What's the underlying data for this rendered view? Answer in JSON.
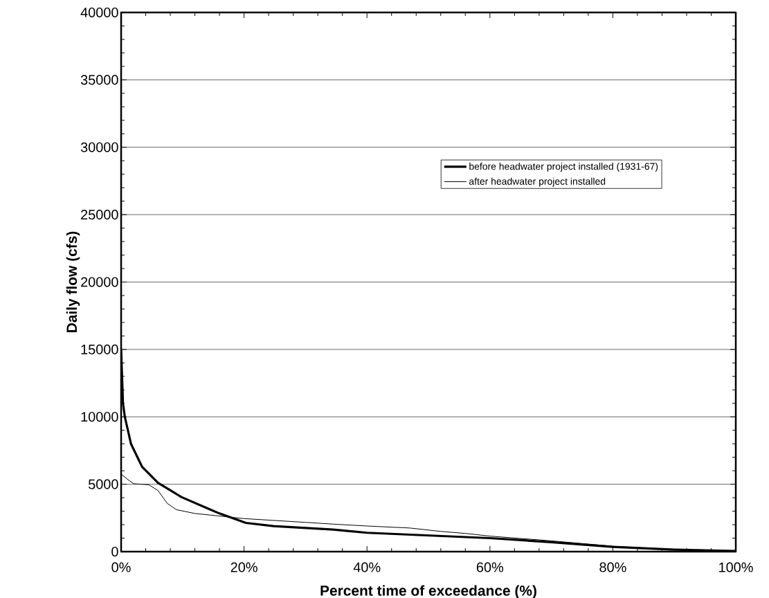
{
  "chart_data": {
    "type": "line",
    "xlabel": "Percent time of exceedance (%)",
    "ylabel": "Daily flow  (cfs)",
    "xlim": [
      0,
      100
    ],
    "ylim": [
      0,
      40000
    ],
    "xticks": [
      {
        "value": 0,
        "label": "0%"
      },
      {
        "value": 20,
        "label": "20%"
      },
      {
        "value": 40,
        "label": "40%"
      },
      {
        "value": 60,
        "label": "60%"
      },
      {
        "value": 80,
        "label": "80%"
      },
      {
        "value": 100,
        "label": "100%"
      }
    ],
    "yticks": [
      0,
      5000,
      10000,
      15000,
      20000,
      25000,
      30000,
      35000,
      40000
    ],
    "grid": "y",
    "legend": "right",
    "marker": "none",
    "line_style": "solid",
    "series": [
      {
        "name": "before headwater project installed (1931-67)",
        "color": "#000000",
        "x": [
          0,
          0.3,
          0.6,
          1.6,
          3.4,
          6,
          9.8,
          13.6,
          16,
          20.3,
          24.8,
          34.5,
          40,
          50,
          60,
          70,
          80,
          90,
          100
        ],
        "values": [
          15000,
          11000,
          10000,
          8000,
          6300,
          5100,
          4050,
          3300,
          2830,
          2130,
          1890,
          1640,
          1400,
          1200,
          1000,
          700,
          350,
          150,
          50
        ]
      },
      {
        "name": "after headwater project installed",
        "color": "#000000",
        "x": [
          0,
          1,
          2,
          4.5,
          6,
          7.5,
          9,
          12,
          16,
          20,
          30,
          34.5,
          40,
          47,
          52,
          56,
          60,
          70,
          80,
          90,
          100
        ],
        "values": [
          5750,
          5380,
          5040,
          4960,
          4530,
          3580,
          3110,
          2830,
          2640,
          2450,
          2170,
          2040,
          1900,
          1750,
          1500,
          1350,
          1150,
          800,
          400,
          150,
          50
        ]
      }
    ]
  }
}
